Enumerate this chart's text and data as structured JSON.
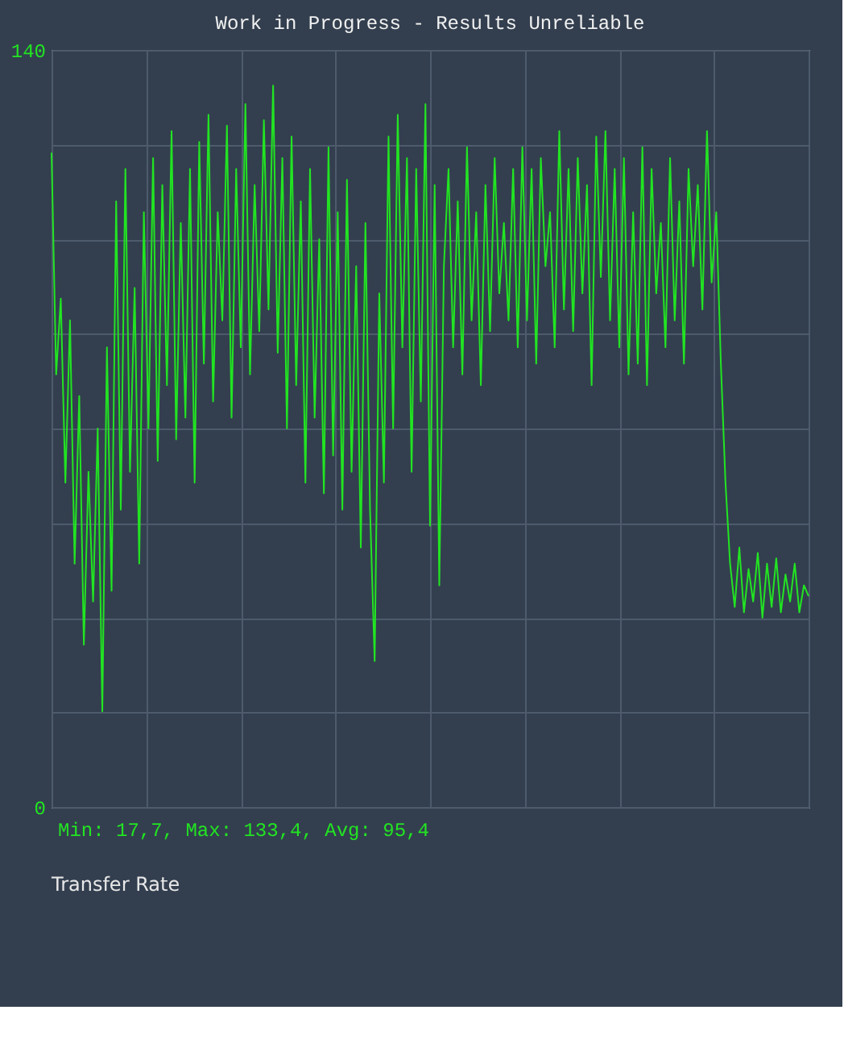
{
  "chart_data": {
    "type": "line",
    "title": "Work in Progress - Results Unreliable",
    "categories": [
      null,
      null,
      null,
      null,
      null,
      null,
      null,
      null,
      null,
      null,
      null,
      null,
      null,
      null,
      null,
      null,
      null,
      null,
      null,
      null,
      null,
      null,
      null,
      null,
      null,
      null,
      null,
      null,
      null,
      null,
      null,
      null,
      null,
      null,
      null,
      null,
      null,
      null,
      null,
      null,
      null,
      null,
      null,
      null,
      null,
      null,
      null,
      null,
      null,
      null,
      null,
      null,
      null,
      null,
      null,
      null,
      null,
      null,
      null,
      null,
      null,
      null,
      null,
      null,
      null,
      null,
      null,
      null,
      null,
      null,
      null,
      null,
      null,
      null,
      null,
      null,
      null,
      null,
      null,
      null,
      null,
      null,
      null,
      null,
      null,
      null,
      null,
      null,
      null,
      null,
      null,
      null,
      null,
      null,
      null,
      null,
      null,
      null,
      null,
      null,
      null,
      null,
      null,
      null,
      null,
      null,
      null,
      null,
      null,
      null,
      null,
      null,
      null,
      null,
      null,
      null,
      null,
      null,
      null,
      null,
      null,
      null,
      null,
      null,
      null,
      null,
      null,
      null,
      null,
      null,
      null,
      null,
      null,
      null,
      null,
      null,
      null,
      null,
      null,
      null,
      null,
      null,
      null,
      null,
      null,
      null,
      null,
      null,
      null,
      null,
      null,
      null,
      null,
      null,
      null,
      null,
      null,
      null,
      null,
      null,
      null,
      null,
      null,
      null,
      null
    ],
    "series": [
      {
        "color": "#22e422",
        "values": [
          121,
          80,
          94,
          60,
          90,
          45,
          76,
          30,
          62,
          38,
          70,
          17.7,
          85,
          40,
          112,
          55,
          118,
          62,
          96,
          45,
          110,
          70,
          120,
          64,
          115,
          78,
          125,
          68,
          108,
          72,
          118,
          60,
          123,
          82,
          128,
          75,
          110,
          90,
          126,
          72,
          118,
          85,
          130,
          80,
          115,
          88,
          127,
          92,
          133.4,
          84,
          120,
          70,
          124,
          78,
          112,
          60,
          118,
          72,
          105,
          58,
          122,
          65,
          110,
          55,
          116,
          62,
          100,
          48,
          108,
          55,
          27,
          95,
          60,
          124,
          70,
          128,
          85,
          120,
          62,
          118,
          75,
          130,
          52,
          115,
          41,
          100,
          118,
          85,
          112,
          80,
          122,
          90,
          110,
          78,
          115,
          88,
          120,
          95,
          108,
          90,
          118,
          85,
          122,
          90,
          118,
          82,
          120,
          100,
          110,
          85,
          125,
          92,
          118,
          88,
          120,
          95,
          115,
          78,
          124,
          98,
          125,
          90,
          118,
          85,
          120,
          80,
          110,
          82,
          122,
          78,
          118,
          95,
          108,
          85,
          120,
          90,
          112,
          82,
          118,
          100,
          115,
          92,
          125,
          97,
          110,
          82,
          60,
          45,
          37,
          48,
          36,
          44,
          38,
          47,
          35,
          45,
          37,
          46,
          36,
          43,
          38,
          45,
          36,
          41,
          39
        ]
      }
    ],
    "ylim": [
      0,
      140
    ],
    "yticks": [
      0,
      {
        "value": 17.5,
        "label": null
      },
      {
        "value": 35,
        "label": null
      },
      {
        "value": 52.5,
        "label": null
      },
      {
        "value": 70,
        "label": null
      },
      {
        "value": 87.5,
        "label": null
      },
      {
        "value": 105,
        "label": null
      },
      {
        "value": 122.5,
        "label": null
      },
      140
    ],
    "grid": true,
    "marker": "none",
    "line_style": "solid",
    "tick_labels": "y",
    "annotations": [
      "Min: 17,7, Max: 133,4, Avg: 95,4",
      "Transfer Rate"
    ]
  }
}
